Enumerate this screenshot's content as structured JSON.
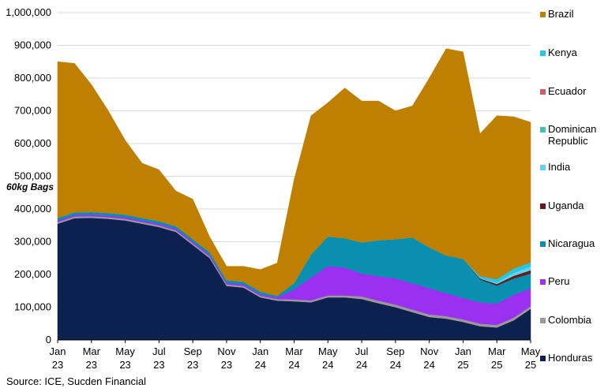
{
  "chart_data": {
    "type": "area",
    "stacked": true,
    "unit_label": "60kg Bags",
    "source": "Source: ICE, Sucden Financial",
    "ylim": [
      0,
      1000000
    ],
    "y_ticks": [
      {
        "value": 0,
        "label": "0"
      },
      {
        "value": 100000,
        "label": "100,000"
      },
      {
        "value": 200000,
        "label": "200,000"
      },
      {
        "value": 300000,
        "label": "300,000"
      },
      {
        "value": 400000,
        "label": "400,000"
      },
      {
        "value": 500000,
        "label": "500,000"
      },
      {
        "value": 600000,
        "label": "600,000"
      },
      {
        "value": 700000,
        "label": "700,000"
      },
      {
        "value": 800000,
        "label": "800,000"
      },
      {
        "value": 900000,
        "label": "900,000"
      },
      {
        "value": 1000000,
        "label": "1,000,000"
      }
    ],
    "x_ticks": [
      {
        "month": "Jan",
        "year": "23"
      },
      {
        "month": "Mar",
        "year": "23"
      },
      {
        "month": "May",
        "year": "23"
      },
      {
        "month": "Jul",
        "year": "23"
      },
      {
        "month": "Sep",
        "year": "23"
      },
      {
        "month": "Nov",
        "year": "23"
      },
      {
        "month": "Jan",
        "year": "24"
      },
      {
        "month": "Mar",
        "year": "24"
      },
      {
        "month": "May",
        "year": "24"
      },
      {
        "month": "Jul",
        "year": "24"
      },
      {
        "month": "Sep",
        "year": "24"
      },
      {
        "month": "Nov",
        "year": "24"
      },
      {
        "month": "Jan",
        "year": "25"
      },
      {
        "month": "Mar",
        "year": "25"
      },
      {
        "month": "May",
        "year": "25"
      }
    ],
    "x": [
      "2023-01",
      "2023-02",
      "2023-03",
      "2023-04",
      "2023-05",
      "2023-06",
      "2023-07",
      "2023-08",
      "2023-09",
      "2023-10",
      "2023-11",
      "2023-12",
      "2024-01",
      "2024-02",
      "2024-03",
      "2024-04",
      "2024-05",
      "2024-06",
      "2024-07",
      "2024-08",
      "2024-09",
      "2024-10",
      "2024-11",
      "2024-12",
      "2025-01",
      "2025-02",
      "2025-03",
      "2025-04",
      "2025-05"
    ],
    "series": [
      {
        "name": "Honduras",
        "color": "#0d2150",
        "values": [
          355000,
          372000,
          373000,
          370000,
          365000,
          355000,
          345000,
          330000,
          290000,
          250000,
          165000,
          160000,
          130000,
          120000,
          118000,
          115000,
          130000,
          130000,
          125000,
          112000,
          100000,
          85000,
          70000,
          65000,
          55000,
          42000,
          38000,
          60000,
          95000
        ]
      },
      {
        "name": "Colombia",
        "color": "#9a9a9a",
        "values": [
          5000,
          5000,
          5000,
          5000,
          5000,
          5000,
          5000,
          5000,
          5000,
          5000,
          5000,
          5000,
          5000,
          5000,
          6000,
          6000,
          6000,
          6000,
          8000,
          8000,
          8000,
          8000,
          8000,
          8000,
          8000,
          8000,
          8000,
          8000,
          8000
        ]
      },
      {
        "name": "Peru",
        "color": "#9b30f0",
        "values": [
          5000,
          5000,
          5000,
          5000,
          5000,
          5000,
          5000,
          5000,
          5000,
          5000,
          5000,
          5000,
          5000,
          5000,
          30000,
          70000,
          90000,
          85000,
          70000,
          75000,
          80000,
          80000,
          80000,
          70000,
          65000,
          65000,
          65000,
          70000,
          55000
        ]
      },
      {
        "name": "Nicaragua",
        "color": "#0a8fb0",
        "values": [
          8000,
          8000,
          8000,
          8000,
          8000,
          8000,
          8000,
          8000,
          8000,
          8000,
          8000,
          8000,
          8000,
          5000,
          20000,
          70000,
          90000,
          90000,
          95000,
          110000,
          120000,
          140000,
          125000,
          115000,
          120000,
          70000,
          55000,
          50000,
          45000
        ]
      },
      {
        "name": "Uganda",
        "color": "#6b1a1a",
        "values": [
          0,
          0,
          0,
          0,
          0,
          0,
          0,
          0,
          0,
          0,
          0,
          0,
          0,
          0,
          0,
          0,
          0,
          0,
          0,
          0,
          0,
          0,
          0,
          0,
          0,
          3000,
          5000,
          8000,
          10000
        ]
      },
      {
        "name": "India",
        "color": "#5fd4f0",
        "values": [
          0,
          0,
          0,
          0,
          0,
          0,
          0,
          0,
          0,
          0,
          0,
          0,
          0,
          0,
          0,
          0,
          0,
          0,
          0,
          0,
          0,
          0,
          0,
          0,
          0,
          2000,
          5000,
          10000,
          12000
        ]
      },
      {
        "name": "Dominican Republic",
        "color": "#45c0b0",
        "values": [
          0,
          0,
          0,
          0,
          0,
          0,
          0,
          0,
          0,
          0,
          0,
          0,
          0,
          0,
          0,
          0,
          0,
          0,
          0,
          0,
          0,
          0,
          0,
          0,
          0,
          0,
          0,
          0,
          0
        ]
      },
      {
        "name": "Ecuador",
        "color": "#d06060",
        "values": [
          0,
          0,
          0,
          0,
          0,
          0,
          0,
          0,
          0,
          0,
          0,
          0,
          0,
          0,
          0,
          0,
          0,
          0,
          0,
          0,
          0,
          0,
          0,
          0,
          0,
          0,
          0,
          0,
          0
        ]
      },
      {
        "name": "Kenya",
        "color": "#22c8e6",
        "values": [
          0,
          0,
          0,
          0,
          0,
          0,
          0,
          0,
          0,
          0,
          0,
          0,
          0,
          0,
          0,
          0,
          0,
          0,
          0,
          0,
          0,
          0,
          0,
          0,
          0,
          5000,
          10000,
          12000,
          12000
        ]
      },
      {
        "name": "Brazil",
        "color": "#bf7f00",
        "values": [
          477000,
          455000,
          389000,
          312000,
          227000,
          167000,
          157000,
          107000,
          122000,
          47000,
          42000,
          47000,
          67000,
          100000,
          316000,
          424000,
          409000,
          459000,
          432000,
          425000,
          392000,
          402000,
          517000,
          632000,
          632000,
          435000,
          499000,
          464000,
          428000
        ]
      }
    ],
    "legend": {
      "placement": "right",
      "order": [
        "Brazil",
        "Kenya",
        "Ecuador",
        "Dominican Republic",
        "India",
        "Uganda",
        "Nicaragua",
        "Peru",
        "Colombia",
        "Honduras"
      ]
    }
  }
}
